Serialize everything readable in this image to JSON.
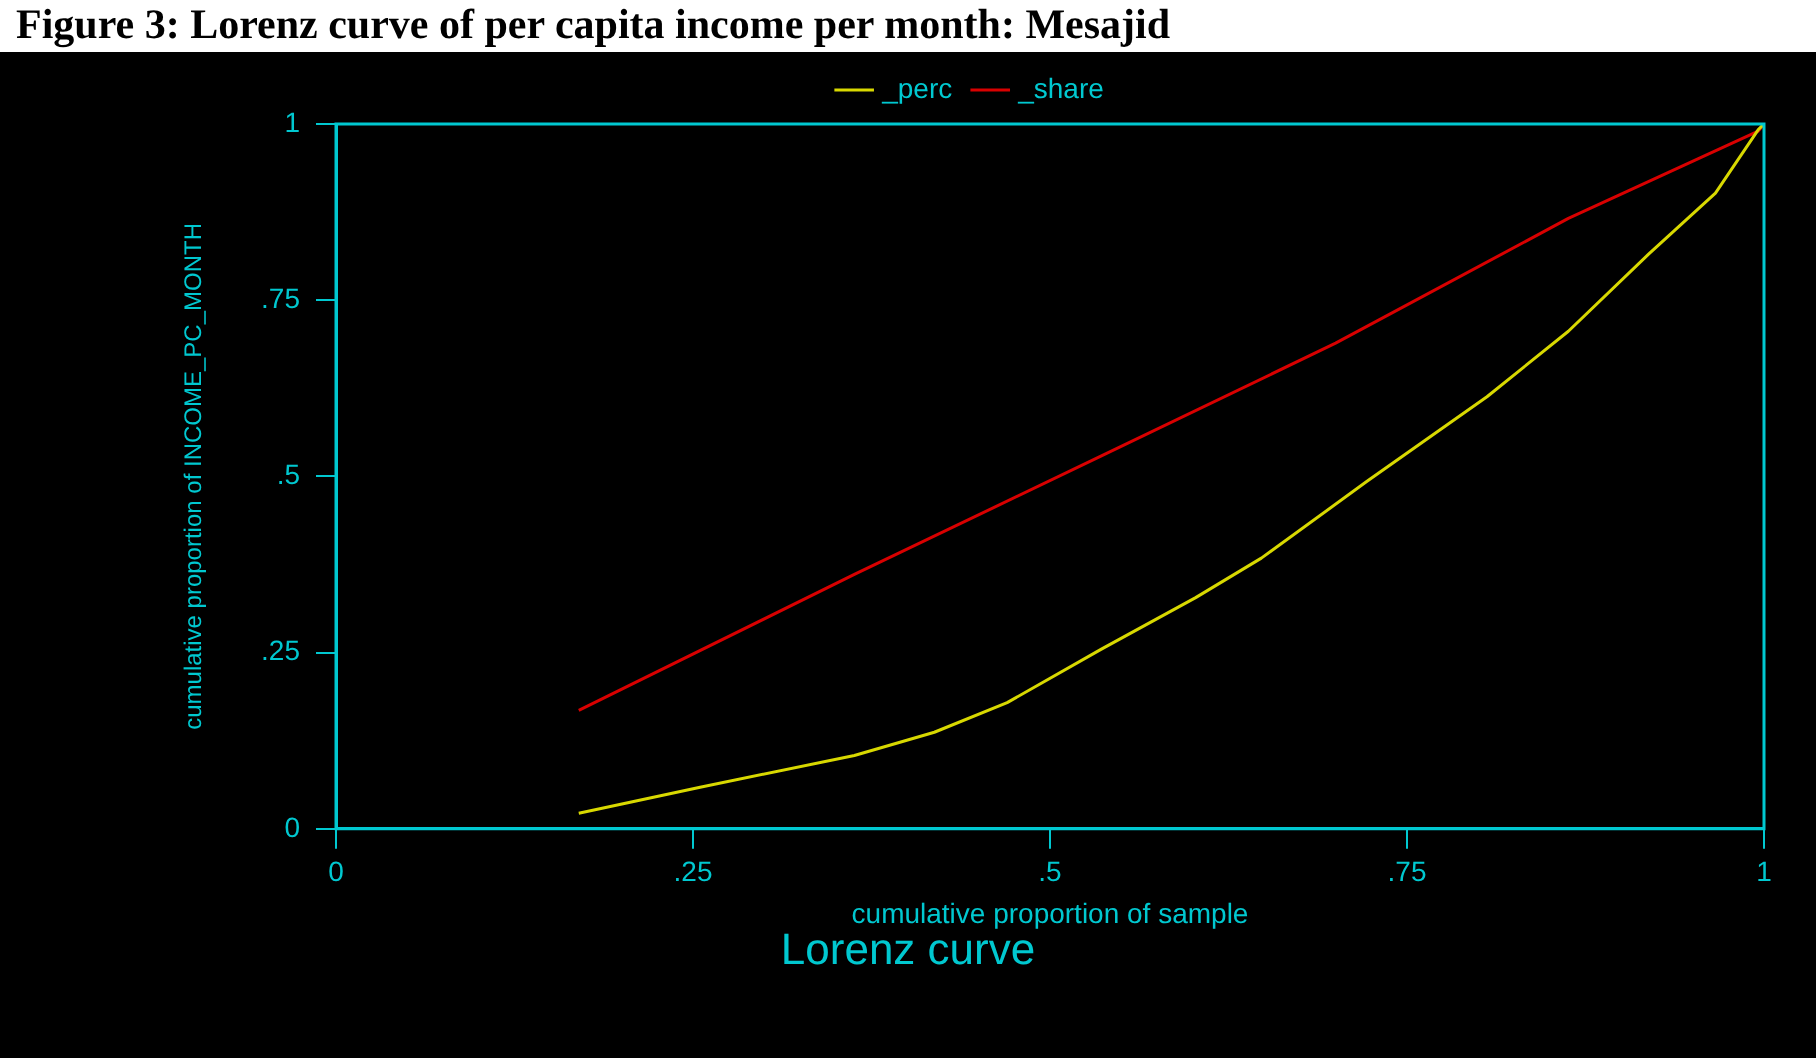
{
  "chart_data": {
    "type": "line",
    "title": "Figure 3: Lorenz curve of per capita income per month: Mesajid",
    "xlabel": "cumulative proportion of sample",
    "ylabel": "cumulative proportion of INCOME_PC_MONTH",
    "annotations": [
      "Lorenz curve"
    ],
    "xlim": [
      0,
      1
    ],
    "xticks": [
      0,
      {
        "value": 0.25,
        "label": ".25"
      },
      {
        "value": 0.5,
        "label": ".5"
      },
      {
        "value": 0.75,
        "label": ".75"
      },
      1
    ],
    "ylim": [
      0,
      1
    ],
    "yticks": [
      0,
      {
        "value": 0.25,
        "label": ".25"
      },
      {
        "value": 0.5,
        "label": ".5"
      },
      {
        "value": 0.75,
        "label": ".75"
      },
      1
    ],
    "grid": false,
    "legend": "top",
    "marker": "none",
    "line_style": "solid",
    "series": [
      {
        "name": "_perc",
        "color": "#d8d800",
        "x": [
          0.17,
          0.255,
          0.363,
          0.419,
          0.47,
          0.536,
          0.602,
          0.648,
          0.722,
          0.806,
          0.863,
          0.919,
          0.966,
          0.996,
          1
        ],
        "values": [
          0.022,
          0.059,
          0.104,
          0.137,
          0.179,
          0.255,
          0.328,
          0.384,
          0.493,
          0.613,
          0.706,
          0.815,
          0.902,
          0.992,
          1
        ]
      },
      {
        "name": "_share",
        "color": "#d80000",
        "x": [
          0.17,
          0.363,
          0.536,
          0.7,
          0.863,
          0.996,
          1
        ],
        "values": [
          0.168,
          0.361,
          0.529,
          0.689,
          0.866,
          0.99,
          1
        ]
      }
    ]
  }
}
